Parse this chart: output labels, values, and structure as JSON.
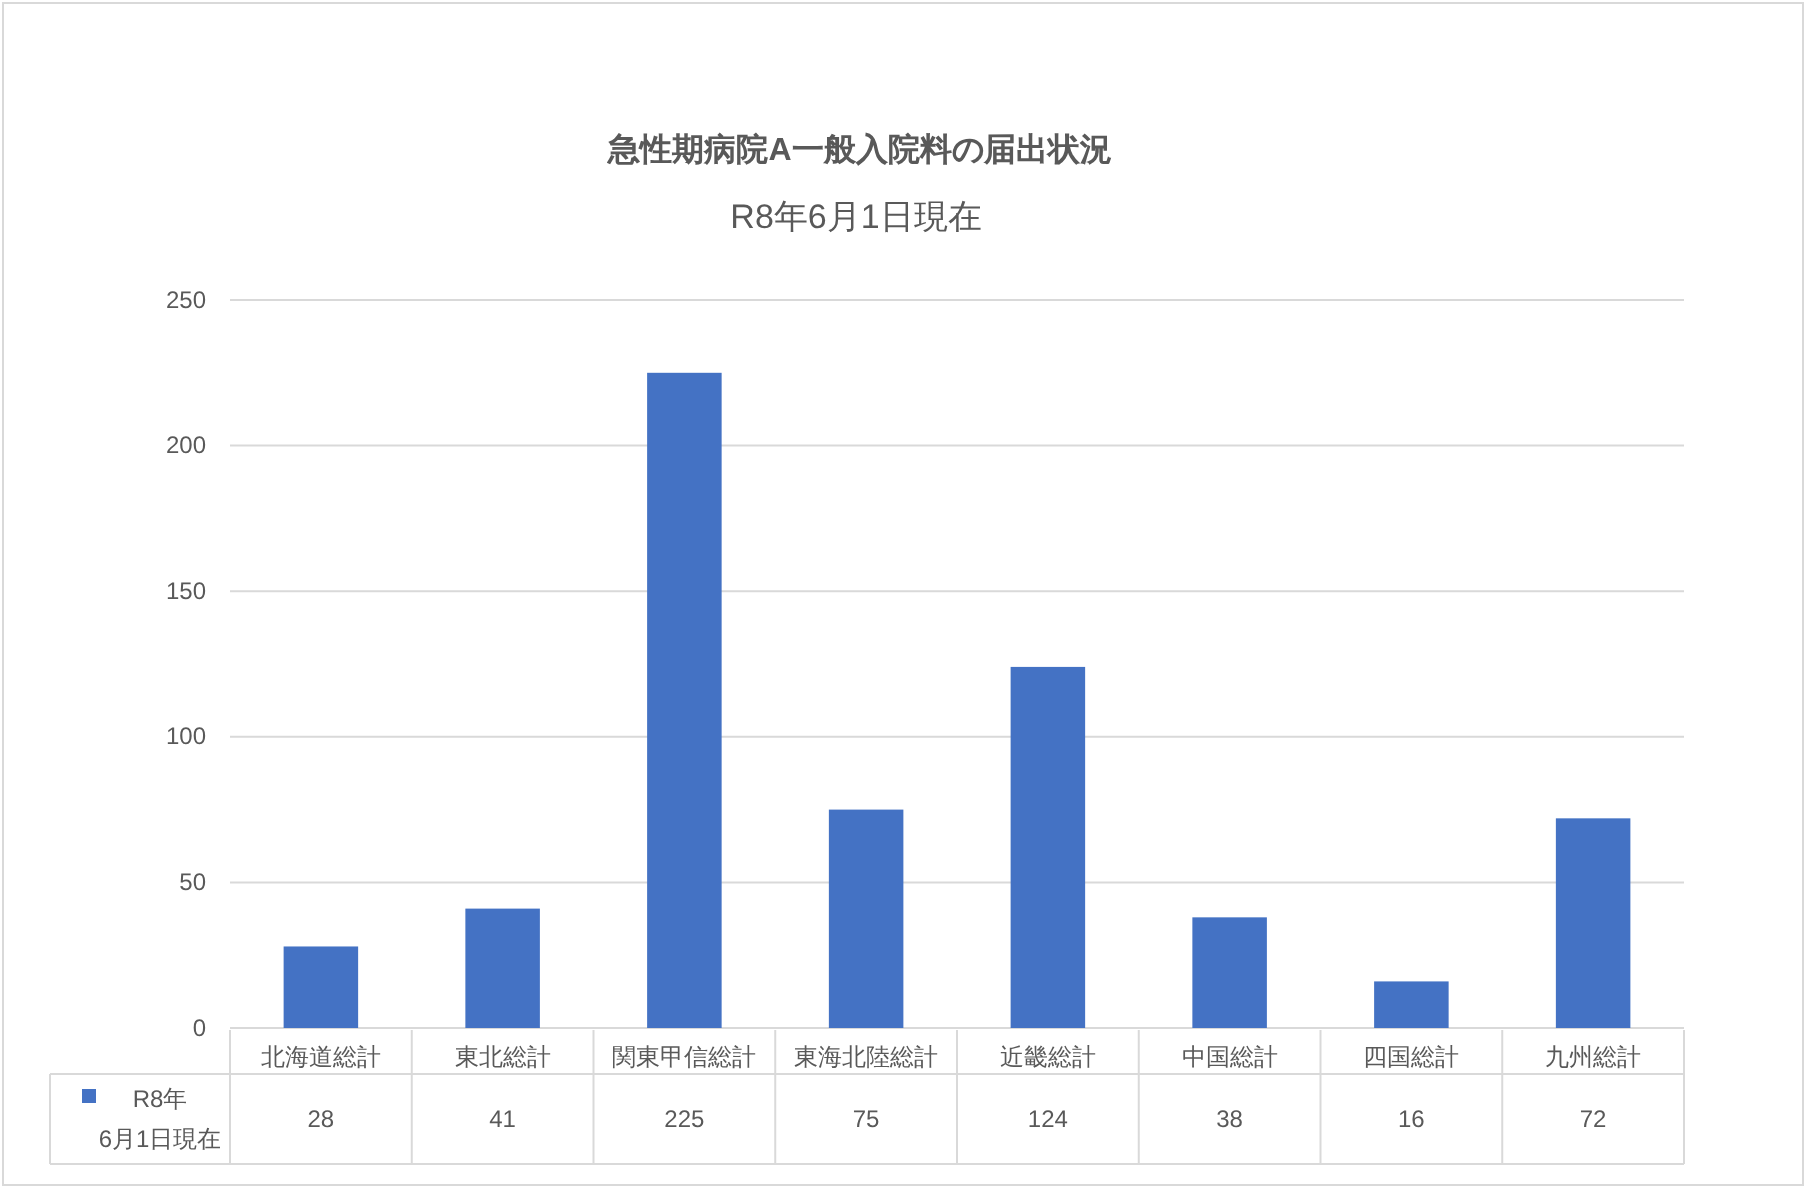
{
  "chart_data": {
    "type": "bar",
    "title": "急性期病院A一般入院料の届出状況",
    "subtitle": "R8年6月1日現在",
    "categories": [
      "北海道総計",
      "東北総計",
      "関東甲信総計",
      "東海北陸総計",
      "近畿総計",
      "中国総計",
      "四国総計",
      "九州総計"
    ],
    "series": [
      {
        "name": "R8年 6月1日現在",
        "color": "#4472c4",
        "values": [
          28,
          41,
          225,
          75,
          124,
          38,
          16,
          72
        ]
      }
    ],
    "ylim": [
      0,
      250
    ],
    "yticks": [
      0,
      50,
      100,
      150,
      200,
      250
    ],
    "grid": "y",
    "legend": "bottom",
    "data_labels": true
  }
}
